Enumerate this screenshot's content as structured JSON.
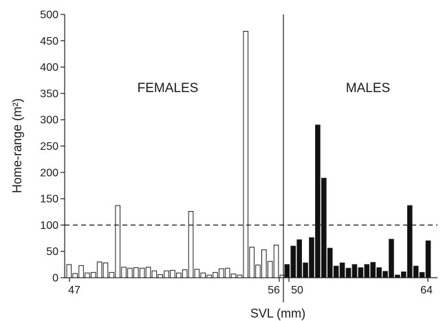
{
  "chart_data": {
    "type": "bar",
    "xlabel": "SVL (mm)",
    "ylabel": "Home-range (m²)",
    "ylim": [
      0,
      500
    ],
    "yticks": [
      0,
      50,
      100,
      150,
      200,
      250,
      300,
      350,
      400,
      450,
      500
    ],
    "grid": false,
    "reference_line": {
      "y": 100,
      "style": "dashed"
    },
    "x_tick_labels": {
      "females_start": "47",
      "females_end": "56",
      "males_start": "50",
      "males_end": "64"
    },
    "series": [
      {
        "name": "FEMALES",
        "fill": "#ffffff",
        "values": [
          25,
          8,
          23,
          9,
          10,
          30,
          28,
          10,
          137,
          20,
          18,
          19,
          18,
          20,
          13,
          6,
          13,
          14,
          9,
          15,
          126,
          16,
          9,
          5,
          10,
          17,
          18,
          7,
          5,
          468,
          58,
          24,
          53,
          31,
          62,
          5
        ]
      },
      {
        "name": "MALES",
        "fill": "#111111",
        "values": [
          25,
          60,
          72,
          28,
          76,
          290,
          189,
          56,
          22,
          28,
          18,
          25,
          19,
          25,
          29,
          19,
          12,
          73,
          5,
          11,
          137,
          22,
          10,
          70
        ]
      }
    ]
  },
  "colors": {
    "axis": "#1a1a1a",
    "female_bar": "#ffffff",
    "male_bar": "#111111"
  }
}
